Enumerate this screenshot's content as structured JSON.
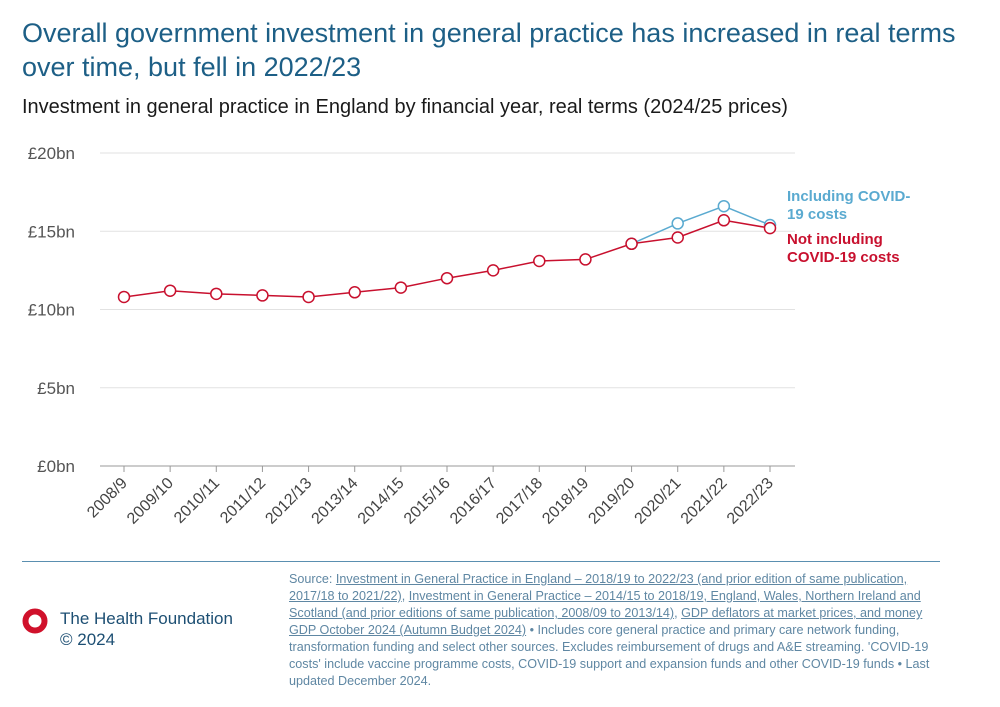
{
  "chart_data": {
    "type": "line",
    "title": "Overall government investment in general practice has increased in real terms over time, but fell in 2022/23",
    "subtitle": "Investment in general practice in England by financial year, real terms (2024/25 prices)",
    "categories": [
      "2008/9",
      "2009/10",
      "2010/11",
      "2011/12",
      "2012/13",
      "2013/14",
      "2014/15",
      "2015/16",
      "2016/17",
      "2017/18",
      "2018/19",
      "2019/20",
      "2020/21",
      "2021/22",
      "2022/23"
    ],
    "series": [
      {
        "name": "Including COVID-19 costs",
        "color": "#5aaad0",
        "values": [
          null,
          null,
          null,
          null,
          null,
          null,
          null,
          null,
          null,
          null,
          null,
          14.2,
          15.5,
          16.6,
          15.4
        ]
      },
      {
        "name": "Not including COVID-19 costs",
        "color": "#c8102e",
        "values": [
          10.8,
          11.2,
          11.0,
          10.9,
          10.8,
          11.1,
          11.4,
          12.0,
          12.5,
          13.1,
          13.2,
          14.2,
          14.6,
          15.7,
          15.2
        ]
      }
    ],
    "ylim": [
      0,
      20
    ],
    "yticks": [
      {
        "value": 0,
        "label": "£0bn"
      },
      {
        "value": 5,
        "label": "£5bn"
      },
      {
        "value": 10,
        "label": "£10bn"
      },
      {
        "value": 15,
        "label": "£15bn"
      },
      {
        "value": 20,
        "label": "£20bn"
      }
    ],
    "grid": true
  },
  "footer": {
    "brand": "The Health Foundation",
    "copyright": "© 2024",
    "source": [
      {
        "text": "Source: "
      },
      {
        "text": "Investment in General Practice in England – 2018/19 to 2022/23 (and prior edition of same publication, 2017/18 to 2021/22)",
        "link": true
      },
      {
        "text": ", "
      },
      {
        "text": "Investment in General Practice – 2014/15 to 2018/19, England, Wales, Northern Ireland and Scotland (and prior editions of same publication, 2008/09 to 2013/14)",
        "link": true
      },
      {
        "text": ", "
      },
      {
        "text": "GDP deflators at market prices, and money GDP October 2024 (Autumn Budget 2024)",
        "link": true
      },
      {
        "text": " • Includes core general practice and primary care network funding, transformation funding and select other sources. Excludes reimbursement of drugs and A&E streaming. 'COVID-19 costs' include vaccine programme costs, COVID-19 support and expansion funds and other COVID-19 funds • Last updated December 2024."
      }
    ]
  }
}
